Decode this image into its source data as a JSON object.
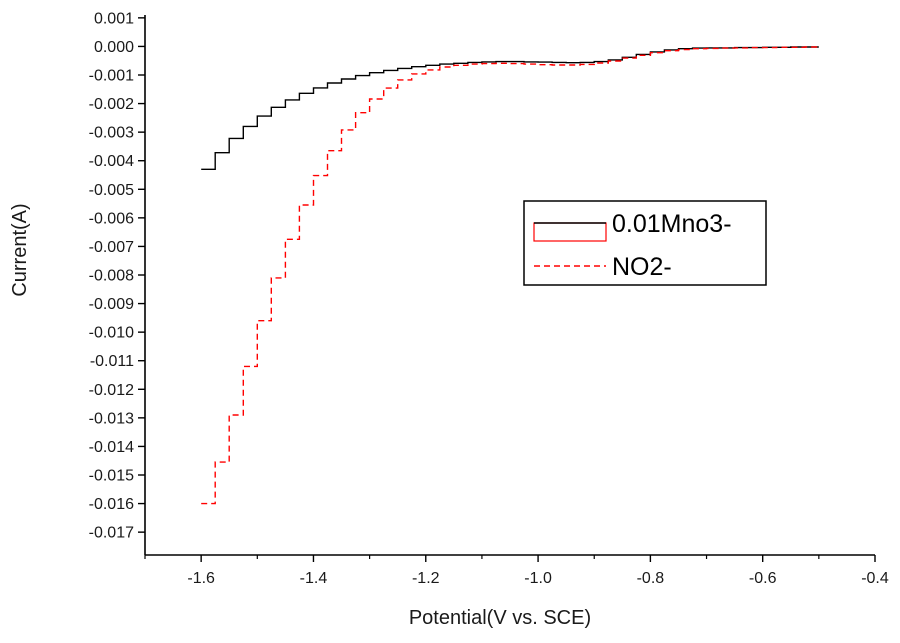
{
  "chart_data": {
    "type": "line",
    "title": "",
    "xlabel": "Potential(V vs. SCE)",
    "ylabel": "Current(A)",
    "xlim": [
      -1.7,
      -0.4
    ],
    "ylim": [
      -0.0178,
      0.0011
    ],
    "grid": false,
    "x_ticks": [
      -1.6,
      -1.4,
      -1.2,
      -1.0,
      -0.8,
      -0.6,
      -0.4
    ],
    "x_tick_labels": [
      "-1.6",
      "-1.4",
      "-1.2",
      "-1.0",
      "-0.8",
      "-0.6",
      "-0.4"
    ],
    "x_minor_step": 0.1,
    "y_ticks": [
      0.001,
      0.0,
      -0.001,
      -0.002,
      -0.003,
      -0.004,
      -0.005,
      -0.006,
      -0.007,
      -0.008,
      -0.009,
      -0.01,
      -0.011,
      -0.012,
      -0.013,
      -0.014,
      -0.015,
      -0.016,
      -0.017
    ],
    "y_tick_labels": [
      "0.001",
      "0.000",
      "-0.001",
      "-0.002",
      "-0.003",
      "-0.004",
      "-0.005",
      "-0.006",
      "-0.007",
      "-0.008",
      "-0.009",
      "-0.010",
      "-0.011",
      "-0.012",
      "-0.013",
      "-0.014",
      "-0.015",
      "-0.016",
      "-0.017"
    ],
    "legend": {
      "position": "center-right",
      "border": true
    },
    "colors": {
      "axis": "#000000",
      "text": "#1a1a1a",
      "background": "#ffffff"
    },
    "series": [
      {
        "name": "0.01Mno3-",
        "color": "#000000",
        "style": "solid",
        "x": [
          -1.6,
          -1.575,
          -1.55,
          -1.525,
          -1.5,
          -1.475,
          -1.45,
          -1.425,
          -1.4,
          -1.375,
          -1.35,
          -1.325,
          -1.3,
          -1.275,
          -1.25,
          -1.225,
          -1.2,
          -1.175,
          -1.15,
          -1.125,
          -1.1,
          -1.075,
          -1.05,
          -1.025,
          -1.0,
          -0.975,
          -0.95,
          -0.925,
          -0.9,
          -0.875,
          -0.85,
          -0.825,
          -0.8,
          -0.775,
          -0.75,
          -0.725,
          -0.7,
          -0.675,
          -0.65,
          -0.625,
          -0.6,
          -0.575,
          -0.55,
          -0.525,
          -0.5
        ],
        "y": [
          -0.0043,
          -0.00372,
          -0.00322,
          -0.0028,
          -0.00244,
          -0.00213,
          -0.00187,
          -0.00164,
          -0.00145,
          -0.00128,
          -0.00114,
          -0.00102,
          -0.00092,
          -0.00084,
          -0.00077,
          -0.00071,
          -0.00066,
          -0.00062,
          -0.00059,
          -0.00056,
          -0.00054,
          -0.00053,
          -0.00053,
          -0.00054,
          -0.00055,
          -0.00056,
          -0.00057,
          -0.00056,
          -0.00053,
          -0.00047,
          -0.00038,
          -0.00028,
          -0.00019,
          -0.00012,
          -8e-05,
          -6e-05,
          -5e-05,
          -5e-05,
          -4e-05,
          -4e-05,
          -3e-05,
          -3e-05,
          -2e-05,
          -2e-05,
          -2e-05
        ]
      },
      {
        "name": "NO2-",
        "color": "#ff0000",
        "style": "dashed",
        "x": [
          -1.6,
          -1.575,
          -1.55,
          -1.525,
          -1.5,
          -1.475,
          -1.45,
          -1.425,
          -1.4,
          -1.375,
          -1.35,
          -1.325,
          -1.3,
          -1.275,
          -1.25,
          -1.225,
          -1.2,
          -1.175,
          -1.15,
          -1.125,
          -1.1,
          -1.075,
          -1.05,
          -1.025,
          -1.0,
          -0.975,
          -0.95,
          -0.925,
          -0.9,
          -0.875,
          -0.85,
          -0.825,
          -0.8,
          -0.775,
          -0.75,
          -0.725,
          -0.7,
          -0.675,
          -0.65,
          -0.625,
          -0.6,
          -0.575,
          -0.55,
          -0.525,
          -0.5
        ],
        "y": [
          -0.016,
          -0.01455,
          -0.0129,
          -0.0112,
          -0.0096,
          -0.0081,
          -0.00675,
          -0.00555,
          -0.00452,
          -0.00365,
          -0.00292,
          -0.00232,
          -0.00184,
          -0.00146,
          -0.00117,
          -0.00096,
          -0.00082,
          -0.00072,
          -0.00066,
          -0.00062,
          -0.0006,
          -0.00059,
          -0.0006,
          -0.00062,
          -0.00064,
          -0.00065,
          -0.00065,
          -0.00063,
          -0.00058,
          -0.00051,
          -0.00041,
          -0.00031,
          -0.00022,
          -0.00015,
          -0.00011,
          -8e-05,
          -7e-05,
          -6e-05,
          -5e-05,
          -4e-05,
          -4e-05,
          -3e-05,
          -3e-05,
          -2e-05,
          -2e-05
        ]
      }
    ]
  }
}
